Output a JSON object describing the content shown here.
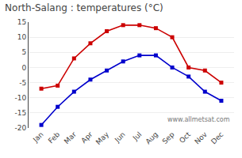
{
  "chart_data": {
    "type": "line",
    "title": "North-Salang : temperatures (°C)",
    "categories": [
      "Jan",
      "Feb",
      "Mar",
      "Apr",
      "May",
      "Jun",
      "Jul",
      "Aug",
      "Sep",
      "Oct",
      "Nov",
      "Dec"
    ],
    "series": [
      {
        "color": "#cc0000",
        "values": [
          -7,
          -6,
          3,
          8,
          12,
          14,
          14,
          13,
          10,
          0,
          -1,
          -5
        ]
      },
      {
        "color": "#0000cc",
        "values": [
          -19,
          -13,
          -8,
          -4,
          -1,
          2,
          4,
          4,
          0,
          -3,
          -8,
          -11
        ]
      }
    ],
    "marker": "square",
    "line_style": "solid",
    "ylim": [
      -20,
      15
    ],
    "yticks": [
      -20,
      -15,
      -10,
      -5,
      0,
      5,
      10,
      15
    ],
    "grid": true,
    "annotations": [
      "www.allmetsat.com"
    ]
  }
}
